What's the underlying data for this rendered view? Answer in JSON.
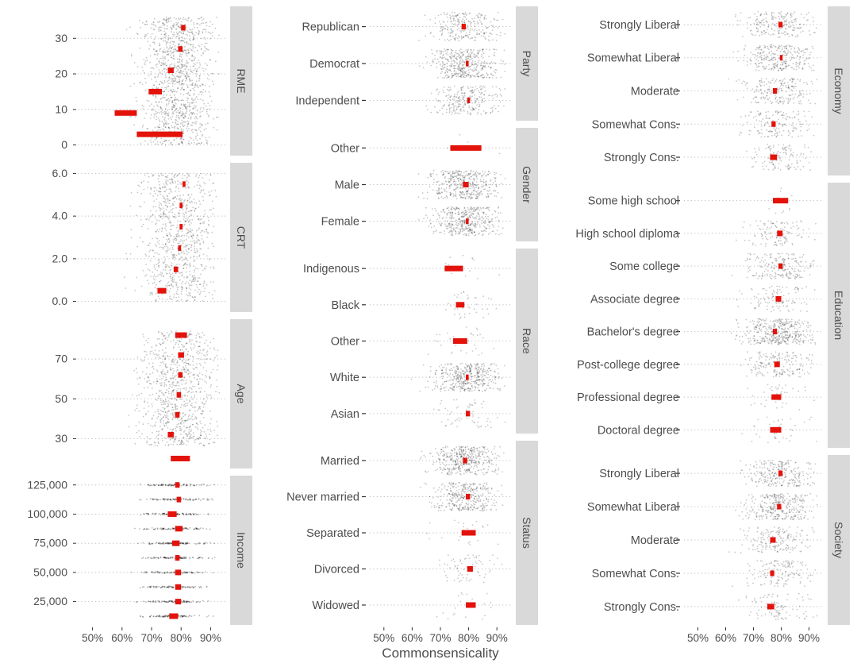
{
  "chart_data": {
    "type": "dot-strip-with-interval",
    "xlabel": "Commonsensicality",
    "x_ticks": [
      50,
      60,
      70,
      80,
      90
    ],
    "x_tick_labels": [
      "50%",
      "60%",
      "70%",
      "80%",
      "90%"
    ],
    "xlim": [
      45,
      95
    ],
    "colors": {
      "interval": "#e3120b",
      "points": "#000000",
      "strip_bg": "#d9d9d9",
      "guide": "#bdbdbd"
    },
    "columns": [
      {
        "panels": [
          {
            "id": "rme",
            "strip": "RME",
            "axis": "numeric",
            "y_ticks": [
              0,
              10,
              20,
              30
            ],
            "y_tick_labels": [
              "0",
              "10",
              "20",
              "30"
            ],
            "ylim": [
              -3,
              39
            ],
            "spread": 0.9,
            "cloud": [
              {
                "y0": 0,
                "y1": 36,
                "x_lo": 55,
                "x_hi": 93,
                "density": 1200
              }
            ],
            "intervals": [
              {
                "y": 33,
                "lo": 80,
                "hi": 81.5
              },
              {
                "y": 27,
                "lo": 79,
                "hi": 80.5
              },
              {
                "y": 21,
                "lo": 75.5,
                "hi": 77.5
              },
              {
                "y": 15,
                "lo": 69,
                "hi": 73.5
              },
              {
                "y": 9,
                "lo": 57.5,
                "hi": 65
              },
              {
                "y": 3,
                "lo": 65,
                "hi": 80.5
              }
            ]
          },
          {
            "id": "crt",
            "strip": "CRT",
            "axis": "numeric",
            "y_ticks": [
              0,
              2,
              4,
              6
            ],
            "y_tick_labels": [
              "0.0",
              "2.0",
              "4.0",
              "6.0"
            ],
            "ylim": [
              -0.5,
              6.5
            ],
            "spread": 0.35,
            "cloud": [
              {
                "y0": 0,
                "y1": 6,
                "x_lo": 50,
                "x_hi": 92,
                "density": 900
              }
            ],
            "intervals": [
              {
                "y": 5.5,
                "lo": 80.5,
                "hi": 81.5
              },
              {
                "y": 4.5,
                "lo": 79.5,
                "hi": 80.5
              },
              {
                "y": 3.5,
                "lo": 79.5,
                "hi": 80.5
              },
              {
                "y": 2.5,
                "lo": 79,
                "hi": 80
              },
              {
                "y": 1.5,
                "lo": 77.5,
                "hi": 79
              },
              {
                "y": 0.5,
                "lo": 72,
                "hi": 75
              }
            ]
          },
          {
            "id": "age",
            "strip": "Age",
            "axis": "numeric",
            "y_ticks": [
              30,
              50,
              70
            ],
            "y_tick_labels": [
              "30",
              "50",
              "70"
            ],
            "ylim": [
              15,
              90
            ],
            "spread": 2.2,
            "cloud": [
              {
                "y0": 26,
                "y1": 84,
                "x_lo": 62,
                "x_hi": 93,
                "density": 900
              }
            ],
            "intervals": [
              {
                "y": 82,
                "lo": 78,
                "hi": 82
              },
              {
                "y": 72,
                "lo": 79,
                "hi": 81
              },
              {
                "y": 62,
                "lo": 79,
                "hi": 80.5
              },
              {
                "y": 52,
                "lo": 78.5,
                "hi": 80
              },
              {
                "y": 42,
                "lo": 78,
                "hi": 79.5
              },
              {
                "y": 32,
                "lo": 75.5,
                "hi": 77.5
              },
              {
                "y": 20,
                "lo": 76.5,
                "hi": 83
              }
            ]
          },
          {
            "id": "income",
            "strip": "Income",
            "axis": "numeric",
            "y_ticks": [
              25000,
              50000,
              75000,
              100000,
              125000
            ],
            "y_tick_labels": [
              "25,000",
              "50,000",
              "75,000",
              "100,000",
              "125,000"
            ],
            "ylim": [
              5000,
              133000
            ],
            "spread": 400,
            "cloud": [
              {
                "rows": [
                  12500,
                  37500,
                  62500,
                  87500,
                  112500,
                  125000,
                  100000,
                  75000,
                  50000,
                  25000
                ],
                "x_lo": 62,
                "x_hi": 92,
                "density": 90
              }
            ],
            "intervals": [
              {
                "y": 125000,
                "lo": 78,
                "hi": 79.5
              },
              {
                "y": 112500,
                "lo": 78.5,
                "hi": 80
              },
              {
                "y": 100000,
                "lo": 75.5,
                "hi": 78.5
              },
              {
                "y": 87500,
                "lo": 78,
                "hi": 80.5
              },
              {
                "y": 75000,
                "lo": 77,
                "hi": 79.5
              },
              {
                "y": 62500,
                "lo": 78,
                "hi": 79.5
              },
              {
                "y": 50000,
                "lo": 78,
                "hi": 80
              },
              {
                "y": 37500,
                "lo": 78,
                "hi": 80
              },
              {
                "y": 25000,
                "lo": 78,
                "hi": 80
              },
              {
                "y": 12500,
                "lo": 76,
                "hi": 79
              }
            ]
          }
        ]
      },
      {
        "panels": [
          {
            "id": "party",
            "strip": "Party",
            "axis": "categorical",
            "categories": [
              {
                "label": "Independent",
                "lo": 79.5,
                "hi": 80.5,
                "n": 250
              },
              {
                "label": "Democrat",
                "lo": 79,
                "hi": 80,
                "n": 500
              },
              {
                "label": "Republican",
                "lo": 77.5,
                "hi": 79,
                "n": 250
              }
            ]
          },
          {
            "id": "gender",
            "strip": "Gender",
            "axis": "categorical",
            "categories": [
              {
                "label": "Female",
                "lo": 79,
                "hi": 80,
                "n": 600
              },
              {
                "label": "Male",
                "lo": 78,
                "hi": 80,
                "n": 500
              },
              {
                "label": "Other",
                "lo": 73.5,
                "hi": 84.5,
                "n": 4
              }
            ]
          },
          {
            "id": "race",
            "strip": "Race",
            "axis": "categorical",
            "categories": [
              {
                "label": "Asian",
                "lo": 79,
                "hi": 80.5,
                "n": 60
              },
              {
                "label": "White",
                "lo": 79,
                "hi": 80,
                "n": 900
              },
              {
                "label": "Other",
                "lo": 74.5,
                "hi": 79.5,
                "n": 30
              },
              {
                "label": "Black",
                "lo": 75.5,
                "hi": 78.5,
                "n": 40
              },
              {
                "label": "Indigenous",
                "lo": 71.5,
                "hi": 78,
                "n": 12
              }
            ]
          },
          {
            "id": "status",
            "strip": "Status",
            "axis": "categorical",
            "categories": [
              {
                "label": "Widowed",
                "lo": 79,
                "hi": 82.5,
                "n": 20
              },
              {
                "label": "Divorced",
                "lo": 79.5,
                "hi": 81.5,
                "n": 70
              },
              {
                "label": "Separated",
                "lo": 77.5,
                "hi": 82.5,
                "n": 25
              },
              {
                "label": "Never married",
                "lo": 79,
                "hi": 80.5,
                "n": 350
              },
              {
                "label": "Married",
                "lo": 78,
                "hi": 79.5,
                "n": 500
              }
            ]
          }
        ]
      },
      {
        "panels": [
          {
            "id": "economy",
            "strip": "Economy",
            "axis": "categorical",
            "categories": [
              {
                "label": "Strongly Cons.",
                "lo": 76,
                "hi": 78.5,
                "n": 120
              },
              {
                "label": "Somewhat Cons.",
                "lo": 76.5,
                "hi": 78,
                "n": 150
              },
              {
                "label": "Moderate",
                "lo": 77,
                "hi": 78.5,
                "n": 200
              },
              {
                "label": "Somewhat Liberal",
                "lo": 79.5,
                "hi": 80.5,
                "n": 280
              },
              {
                "label": "Strongly Liberal",
                "lo": 79,
                "hi": 80.5,
                "n": 200
              }
            ]
          },
          {
            "id": "education",
            "strip": "Education",
            "axis": "categorical",
            "categories": [
              {
                "label": "Doctoral degree",
                "lo": 76,
                "hi": 80,
                "n": 40
              },
              {
                "label": "Professional degree",
                "lo": 76.5,
                "hi": 80,
                "n": 40
              },
              {
                "label": "Post-college degree",
                "lo": 77.5,
                "hi": 79.5,
                "n": 180
              },
              {
                "label": "Bachelor's degree",
                "lo": 77,
                "hi": 78.5,
                "n": 400
              },
              {
                "label": "Associate degree",
                "lo": 78,
                "hi": 80,
                "n": 110
              },
              {
                "label": "Some college",
                "lo": 79,
                "hi": 80.5,
                "n": 200
              },
              {
                "label": "High school diploma",
                "lo": 78.5,
                "hi": 80.5,
                "n": 120
              },
              {
                "label": "Some high school",
                "lo": 77,
                "hi": 82.5,
                "n": 10
              }
            ]
          },
          {
            "id": "society",
            "strip": "Society",
            "axis": "categorical",
            "categories": [
              {
                "label": "Strongly Cons.",
                "lo": 75,
                "hi": 77.5,
                "n": 100
              },
              {
                "label": "Somewhat Cons.",
                "lo": 76,
                "hi": 77.5,
                "n": 140
              },
              {
                "label": "Moderate",
                "lo": 76,
                "hi": 78,
                "n": 170
              },
              {
                "label": "Somewhat Liberal",
                "lo": 78.5,
                "hi": 80,
                "n": 320
              },
              {
                "label": "Strongly Liberal",
                "lo": 79,
                "hi": 80.5,
                "n": 250
              }
            ]
          }
        ]
      }
    ]
  }
}
